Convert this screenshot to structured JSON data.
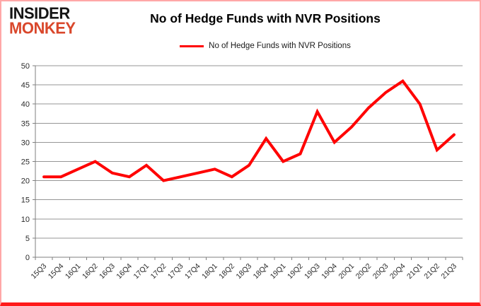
{
  "logo": {
    "line1": "INSIDER",
    "line2": "MONKEY",
    "color1": "#151515",
    "color2": "#d9472b"
  },
  "header": {
    "title": "No of Hedge Funds with NVR Positions"
  },
  "legend": {
    "label": "No of Hedge Funds with NVR Positions",
    "line_color": "#ff0000"
  },
  "chart_data": {
    "type": "line",
    "title": "No of Hedge Funds with NVR Positions",
    "categories": [
      "15Q3",
      "15Q4",
      "16Q1",
      "16Q2",
      "16Q3",
      "16Q4",
      "17Q1",
      "17Q2",
      "17Q3",
      "17Q4",
      "18Q1",
      "18Q2",
      "18Q3",
      "18Q4",
      "19Q1",
      "19Q2",
      "19Q3",
      "19Q4",
      "20Q1",
      "20Q2",
      "20Q3",
      "20Q4",
      "21Q1",
      "21Q2",
      "21Q3"
    ],
    "series": [
      {
        "name": "No of Hedge Funds with NVR Positions",
        "color": "#ff0000",
        "values": [
          21,
          21,
          23,
          25,
          22,
          21,
          24,
          20,
          21,
          22,
          23,
          21,
          24,
          31,
          25,
          27,
          38,
          30,
          34,
          39,
          43,
          46,
          40,
          28,
          32
        ]
      }
    ],
    "xlabel": "",
    "ylabel": "",
    "ylim": [
      0,
      50
    ],
    "ytick_step": 5,
    "yticks": [
      0,
      5,
      10,
      15,
      20,
      25,
      30,
      35,
      40,
      45,
      50
    ],
    "grid": true,
    "legend_position": "top",
    "gridline_color": "#969696",
    "axis_color": "#7f7f7f",
    "tick_label_color": "#2b2b2b",
    "x_label_rotation_deg": -45
  }
}
